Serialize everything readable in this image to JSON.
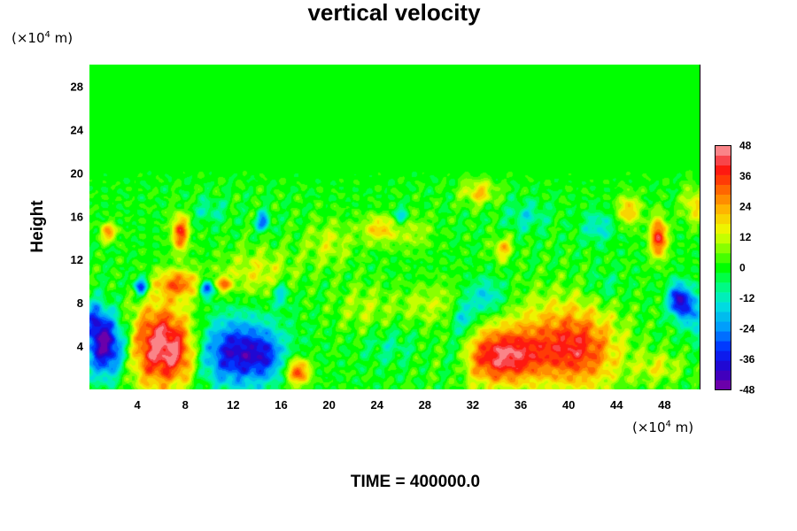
{
  "chart_data": {
    "type": "heatmap",
    "title": "vertical velocity",
    "ylabel": "Height",
    "x_unit": {
      "prefix": "(×10",
      "exp": "4",
      "suffix": " m)"
    },
    "y_unit": {
      "prefix": "(×10",
      "exp": "4",
      "suffix": " m)"
    },
    "xlim": [
      0,
      51
    ],
    "ylim": [
      0,
      30
    ],
    "x_ticks": [
      4,
      8,
      12,
      16,
      20,
      24,
      28,
      32,
      36,
      40,
      44,
      48
    ],
    "y_ticks": [
      4,
      8,
      12,
      16,
      20,
      24,
      28
    ],
    "x_tick_labels": [
      "4",
      "8",
      "12",
      "16",
      "20",
      "24",
      "28",
      "32",
      "36",
      "40",
      "44",
      "48"
    ],
    "y_tick_labels": [
      "4",
      "8",
      "12",
      "16",
      "20",
      "24",
      "28"
    ],
    "colorbar": {
      "min": -48,
      "max": 48,
      "ticks": [
        48,
        36,
        24,
        12,
        0,
        -12,
        -24,
        -36,
        -48
      ],
      "tick_labels": [
        "48",
        "36",
        "24",
        "12",
        "0",
        "-12",
        "-24",
        "-36",
        "-48"
      ],
      "levels": 25
    },
    "features": [
      {
        "x": 6.0,
        "y": 4.0,
        "sx": 1.9,
        "sy": 2.8,
        "value": 48
      },
      {
        "x": 7.8,
        "y": 3.0,
        "sx": 0.8,
        "sy": 1.6,
        "value": 12
      },
      {
        "x": 1.4,
        "y": 4.0,
        "sx": 1.2,
        "sy": 2.0,
        "value": -46
      },
      {
        "x": 0.5,
        "y": 6.5,
        "sx": 0.6,
        "sy": 1.2,
        "value": -20
      },
      {
        "x": 12.4,
        "y": 3.4,
        "sx": 2.4,
        "sy": 2.2,
        "value": -40
      },
      {
        "x": 14.8,
        "y": 3.0,
        "sx": 0.9,
        "sy": 1.4,
        "value": -12
      },
      {
        "x": 17.4,
        "y": 1.6,
        "sx": 0.7,
        "sy": 0.9,
        "value": 36
      },
      {
        "x": 34.4,
        "y": 3.0,
        "sx": 2.5,
        "sy": 1.9,
        "value": 42
      },
      {
        "x": 40.9,
        "y": 3.4,
        "sx": 2.4,
        "sy": 2.6,
        "value": 32
      },
      {
        "x": 38.5,
        "y": 6.0,
        "sx": 3.0,
        "sy": 2.4,
        "value": 12
      },
      {
        "x": 30.0,
        "y": 8.0,
        "sx": 1.4,
        "sy": 1.6,
        "value": 8
      },
      {
        "x": 31.2,
        "y": 6.5,
        "sx": 0.7,
        "sy": 1.2,
        "value": -20
      },
      {
        "x": 30.6,
        "y": 3.0,
        "sx": 0.8,
        "sy": 1.6,
        "value": -14
      },
      {
        "x": 33.0,
        "y": 8.5,
        "sx": 1.2,
        "sy": 1.2,
        "value": -18
      },
      {
        "x": 49.2,
        "y": 8.2,
        "sx": 0.6,
        "sy": 1.1,
        "value": -42
      },
      {
        "x": 50.5,
        "y": 7.0,
        "sx": 0.6,
        "sy": 1.4,
        "value": -22
      },
      {
        "x": 47.5,
        "y": 2.0,
        "sx": 1.4,
        "sy": 1.0,
        "value": 14
      },
      {
        "x": 47.5,
        "y": 14.0,
        "sx": 0.5,
        "sy": 1.3,
        "value": 40
      },
      {
        "x": 45.0,
        "y": 16.5,
        "sx": 0.7,
        "sy": 1.0,
        "value": 22
      },
      {
        "x": 50.5,
        "y": 17.0,
        "sx": 0.7,
        "sy": 1.2,
        "value": 18
      },
      {
        "x": 7.6,
        "y": 14.5,
        "sx": 0.5,
        "sy": 1.2,
        "value": 36
      },
      {
        "x": 1.6,
        "y": 14.5,
        "sx": 0.5,
        "sy": 0.6,
        "value": 26
      },
      {
        "x": 7.4,
        "y": 9.8,
        "sx": 1.3,
        "sy": 0.9,
        "value": 28
      },
      {
        "x": 4.3,
        "y": 9.5,
        "sx": 0.4,
        "sy": 0.6,
        "value": -36
      },
      {
        "x": 9.8,
        "y": 9.3,
        "sx": 0.4,
        "sy": 0.6,
        "value": -36
      },
      {
        "x": 11.2,
        "y": 9.7,
        "sx": 0.4,
        "sy": 0.5,
        "value": 28
      },
      {
        "x": 14.0,
        "y": 10.8,
        "sx": 2.2,
        "sy": 1.6,
        "value": 14
      },
      {
        "x": 16.0,
        "y": 8.8,
        "sx": 0.5,
        "sy": 0.8,
        "value": -18
      },
      {
        "x": 14.5,
        "y": 15.5,
        "sx": 0.4,
        "sy": 0.6,
        "value": -28
      },
      {
        "x": 20.0,
        "y": 13.5,
        "sx": 1.5,
        "sy": 1.5,
        "value": 12
      },
      {
        "x": 24.2,
        "y": 14.8,
        "sx": 1.0,
        "sy": 0.9,
        "value": 20
      },
      {
        "x": 26.0,
        "y": 16.0,
        "sx": 0.4,
        "sy": 0.6,
        "value": -20
      },
      {
        "x": 27.0,
        "y": 14.5,
        "sx": 1.2,
        "sy": 1.2,
        "value": 10
      },
      {
        "x": 32.5,
        "y": 18.2,
        "sx": 1.0,
        "sy": 0.8,
        "value": 20
      },
      {
        "x": 34.5,
        "y": 13.0,
        "sx": 0.6,
        "sy": 0.8,
        "value": 20
      },
      {
        "x": 36.5,
        "y": 16.0,
        "sx": 1.2,
        "sy": 1.0,
        "value": -12
      },
      {
        "x": 42.5,
        "y": 15.0,
        "sx": 1.0,
        "sy": 1.0,
        "value": -14
      },
      {
        "x": 23.0,
        "y": 7.5,
        "sx": 1.8,
        "sy": 1.6,
        "value": 10
      },
      {
        "x": 27.5,
        "y": 7.8,
        "sx": 1.3,
        "sy": 1.2,
        "value": 8
      },
      {
        "x": 25.0,
        "y": 4.0,
        "sx": 1.5,
        "sy": 1.2,
        "value": -8
      },
      {
        "x": 10.0,
        "y": 16.5,
        "sx": 1.0,
        "sy": 0.8,
        "value": -10
      },
      {
        "x": 43.0,
        "y": 9.5,
        "sx": 1.0,
        "sy": 1.0,
        "value": -8
      }
    ]
  },
  "footer": {
    "time_label": "TIME = 400000.0"
  }
}
